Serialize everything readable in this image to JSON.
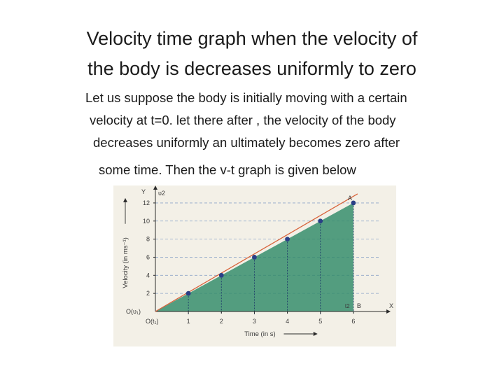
{
  "slide": {
    "title_lines": [
      "Velocity time graph when the velocity of",
      "the body is decreases uniformly to zero"
    ],
    "paragraph_lines": [
      "Let us suppose the body is initially moving with a certain",
      "velocity at t=0. let there after , the velocity of the body",
      "decreases uniformly an ultimately becomes zero after",
      "some time. Then the v-t graph is given below"
    ]
  },
  "chart_data": {
    "type": "area",
    "xlabel": "Time (in s)",
    "ylabel": "Velocity (in ms⁻¹)",
    "x_axis_name": "X",
    "y_axis_name": "Y",
    "x_ticks": [
      "1",
      "2",
      "3",
      "4",
      "5",
      "6"
    ],
    "y_ticks": [
      "2",
      "4",
      "6",
      "8",
      "10",
      "12"
    ],
    "xlim": [
      0,
      7
    ],
    "ylim": [
      0,
      13
    ],
    "origin_labels": {
      "v": "O(υ₁)",
      "t": "O(t₁)"
    },
    "corner_labels": {
      "v2": "υ2",
      "A": "A",
      "B": "B",
      "t2": "t2"
    },
    "line": {
      "x": [
        0,
        6
      ],
      "y": [
        0,
        12
      ]
    },
    "points": {
      "x": [
        1,
        2,
        3,
        4,
        5,
        6
      ],
      "y": [
        2,
        4,
        6,
        8,
        10,
        12
      ]
    },
    "grid": "dashed",
    "colors": {
      "fill": "#2f8a68",
      "line": "#d8643c",
      "points": "#2a3f86",
      "background": "#f2efe6"
    }
  }
}
